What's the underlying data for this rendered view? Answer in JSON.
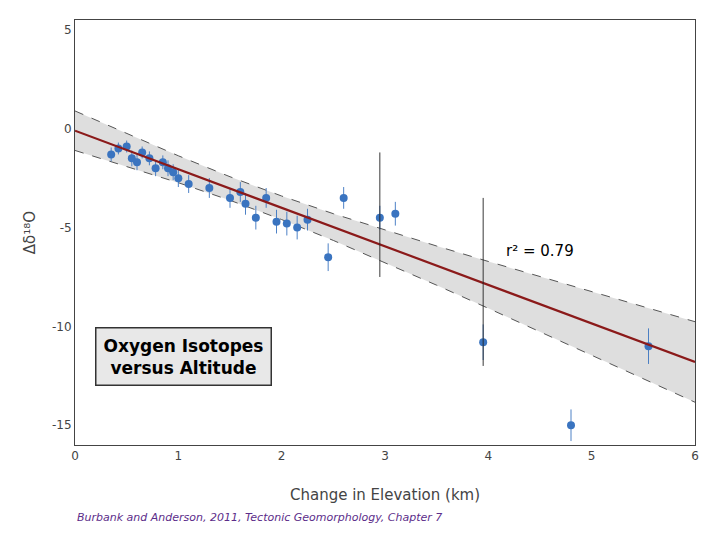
{
  "chart_data": {
    "type": "scatter",
    "xlabel": "Change in Elevation (km)",
    "ylabel": "Δδ¹⁸O",
    "xlim": [
      0,
      6
    ],
    "ylim": [
      -16,
      5.5
    ],
    "xticks": [
      0,
      1,
      2,
      3,
      4,
      5,
      6
    ],
    "yticks": [
      5,
      0,
      -5,
      -10,
      -15
    ],
    "grid": false,
    "annotations": [
      "r² = 0.79",
      "Oxygen Isotopes\nversus Altitude"
    ],
    "citation": {
      "text": "Burbank and Anderson, 2011, Tectonic Geomorphology, Chapter 7",
      "color": "#5c2d8a"
    },
    "series": [
      {
        "type": "band",
        "color": "#d8d8d8",
        "x": [
          0,
          0.5,
          1,
          1.5,
          2,
          2.5,
          3,
          3.5,
          4,
          4.5,
          5,
          5.5,
          6
        ],
        "lower": [
          -1.099,
          -1.898,
          -2.731,
          -3.621,
          -4.595,
          -5.651,
          -6.767,
          -7.916,
          -9.085,
          -10.265,
          -11.452,
          -12.643,
          -13.837
        ],
        "upper": [
          0.899,
          -0.252,
          -1.369,
          -2.429,
          -3.405,
          -4.299,
          -5.133,
          -5.934,
          -6.715,
          -7.485,
          -8.248,
          -9.007,
          -9.763
        ]
      },
      {
        "type": "line",
        "line_style": "dashed",
        "color": "#555555",
        "x": [
          0,
          0.5,
          1,
          1.5,
          2,
          2.5,
          3,
          3.5,
          4,
          4.5,
          5,
          5.5,
          6
        ],
        "values": [
          0.899,
          -0.252,
          -1.369,
          -2.429,
          -3.405,
          -4.299,
          -5.133,
          -5.934,
          -6.715,
          -7.485,
          -8.248,
          -9.007,
          -9.763
        ]
      },
      {
        "type": "line",
        "line_style": "dashed",
        "color": "#555555",
        "x": [
          0,
          0.5,
          1,
          1.5,
          2,
          2.5,
          3,
          3.5,
          4,
          4.5,
          5,
          5.5,
          6
        ],
        "values": [
          -1.099,
          -1.898,
          -2.731,
          -3.621,
          -4.595,
          -5.651,
          -6.767,
          -7.916,
          -9.085,
          -10.265,
          -11.452,
          -12.643,
          -13.837
        ]
      },
      {
        "type": "scatter",
        "marker": "circle",
        "color": "#3a74c0",
        "x": [
          0.35,
          0.42,
          0.5,
          0.55,
          0.6,
          0.65,
          0.72,
          0.78,
          0.85,
          0.9,
          0.95,
          1.0,
          1.1,
          1.3,
          1.5,
          1.6,
          1.65,
          1.75,
          1.85,
          1.95,
          2.05,
          2.15,
          2.25,
          2.45,
          2.6,
          2.95,
          3.1,
          3.95,
          4.8,
          5.55
        ],
        "values": [
          -1.3,
          -1.0,
          -0.9,
          -1.5,
          -1.7,
          -1.2,
          -1.5,
          -2.0,
          -1.7,
          -2.0,
          -2.2,
          -2.5,
          -2.8,
          -3.0,
          -3.5,
          -3.2,
          -3.8,
          -4.5,
          -3.5,
          -4.7,
          -4.8,
          -5.0,
          -4.6,
          -6.5,
          -3.5,
          -4.5,
          -4.3,
          -10.8,
          -15.0,
          -11.0
        ],
        "error": [
          0.35,
          0.3,
          0.3,
          0.4,
          0.4,
          0.3,
          0.35,
          0.4,
          0.35,
          0.4,
          0.4,
          0.45,
          0.45,
          0.5,
          0.5,
          0.5,
          0.55,
          0.6,
          0.5,
          0.6,
          0.6,
          0.6,
          0.55,
          0.7,
          0.55,
          0.6,
          0.6,
          0.9,
          0.8,
          0.9
        ]
      },
      {
        "type": "line",
        "line_style": "solid",
        "color": "#8b1a1a",
        "x": [
          0,
          6
        ],
        "values": [
          -0.1,
          -11.8
        ]
      },
      {
        "type": "range",
        "color": "#222222",
        "x": [
          2.95,
          3.95
        ],
        "low": [
          -7.5,
          -12.0
        ],
        "high": [
          -1.2,
          -3.5
        ]
      }
    ]
  }
}
